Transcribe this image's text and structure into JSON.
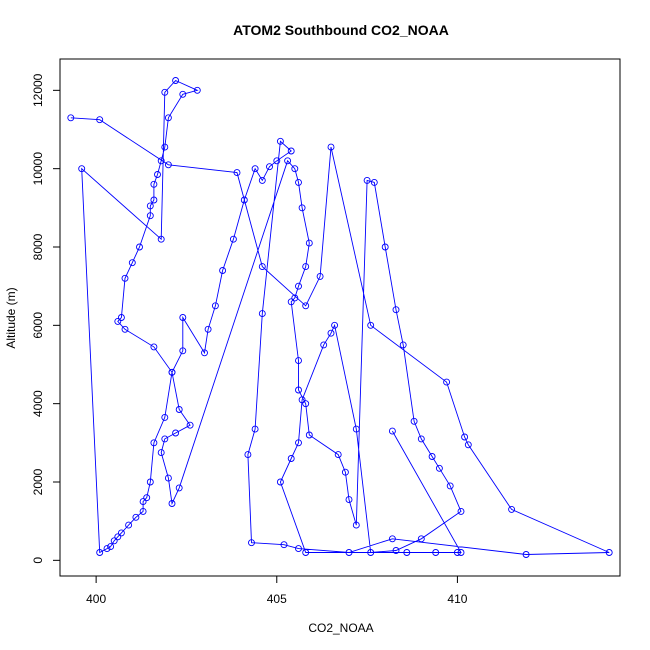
{
  "chart_data": {
    "type": "line",
    "title": "ATOM2 Southbound CO2_NOAA",
    "xlabel": "CO2_NOAA",
    "ylabel": "Altitude (m)",
    "xlim": [
      399,
      414.5
    ],
    "ylim": [
      -400,
      12800
    ],
    "xticks": [
      400,
      405,
      410
    ],
    "yticks": [
      0,
      2000,
      4000,
      6000,
      8000,
      10000,
      12000
    ],
    "grid": false,
    "colors": {
      "series": "#0000ff",
      "axis": "#000000"
    },
    "series": [
      {
        "marker": "open-circle",
        "x": [
          399.3,
          400.1,
          402.0,
          403.9,
          404.6,
          405.8,
          406.2,
          406.5,
          407.6,
          409.7,
          410.2,
          410.3,
          411.5,
          414.2,
          411.9,
          408.2,
          407.0,
          405.6,
          405.2,
          404.3,
          404.2,
          404.4,
          404.6,
          405.1,
          405.4,
          405.0,
          404.8,
          404.6,
          404.4,
          404.1,
          403.8,
          403.5,
          403.3,
          403.1,
          403.0,
          402.4,
          402.4,
          402.1,
          401.9,
          401.6,
          401.5,
          401.4,
          401.3,
          401.3,
          401.1,
          400.9,
          400.7,
          400.6,
          400.5,
          400.4,
          400.3,
          400.1,
          399.6,
          401.8,
          401.9,
          402.2,
          402.8,
          402.4,
          402.0,
          401.9,
          401.8,
          401.7,
          401.6,
          401.6,
          401.5,
          401.5,
          401.2,
          401.0,
          400.8,
          400.7,
          400.6,
          400.8,
          401.6,
          402.1,
          402.3,
          402.6,
          402.2,
          401.9,
          401.8,
          402.0,
          402.1,
          402.3,
          405.3,
          405.5,
          405.6,
          405.7,
          405.9,
          405.8,
          405.6,
          405.5,
          405.4,
          405.6,
          405.6,
          405.8,
          405.9,
          406.7,
          406.9,
          407.0,
          407.2,
          407.5,
          407.7,
          408.0,
          408.3,
          408.5,
          408.8,
          409.0,
          409.3,
          409.5,
          409.8,
          410.1,
          409.0,
          408.3,
          407.6,
          407.2,
          406.6,
          406.5,
          406.3,
          405.7,
          405.6,
          405.4,
          405.1,
          405.8,
          408.6,
          409.4,
          410.0,
          410.1,
          408.2
        ],
        "y": [
          11300,
          11250,
          10100,
          9900,
          7500,
          6500,
          7250,
          10550,
          6000,
          4550,
          3150,
          2950,
          1300,
          200,
          150,
          550,
          200,
          300,
          400,
          450,
          2700,
          3350,
          6300,
          10700,
          10450,
          10200,
          10050,
          9700,
          10000,
          9200,
          8200,
          7400,
          6500,
          5900,
          5300,
          6200,
          5350,
          4800,
          3650,
          3000,
          2000,
          1600,
          1500,
          1250,
          1100,
          900,
          700,
          600,
          500,
          350,
          300,
          200,
          10000,
          8200,
          11950,
          12250,
          12000,
          11900,
          11300,
          10550,
          10200,
          9850,
          9600,
          9200,
          9050,
          8800,
          8000,
          7600,
          7200,
          6200,
          6100,
          5900,
          5450,
          4800,
          3850,
          3450,
          3250,
          3100,
          2750,
          2100,
          1450,
          1850,
          10200,
          10000,
          9650,
          9000,
          8100,
          7500,
          7000,
          6700,
          6600,
          5100,
          4350,
          4000,
          3200,
          2700,
          2250,
          1550,
          900,
          9700,
          9650,
          8000,
          6400,
          5500,
          3550,
          3100,
          2650,
          2350,
          1900,
          1250,
          550,
          250,
          200,
          3350,
          6000,
          5800,
          5500,
          4100,
          3000,
          2600,
          2000,
          200,
          200,
          200,
          200,
          200,
          3300
        ]
      }
    ]
  }
}
